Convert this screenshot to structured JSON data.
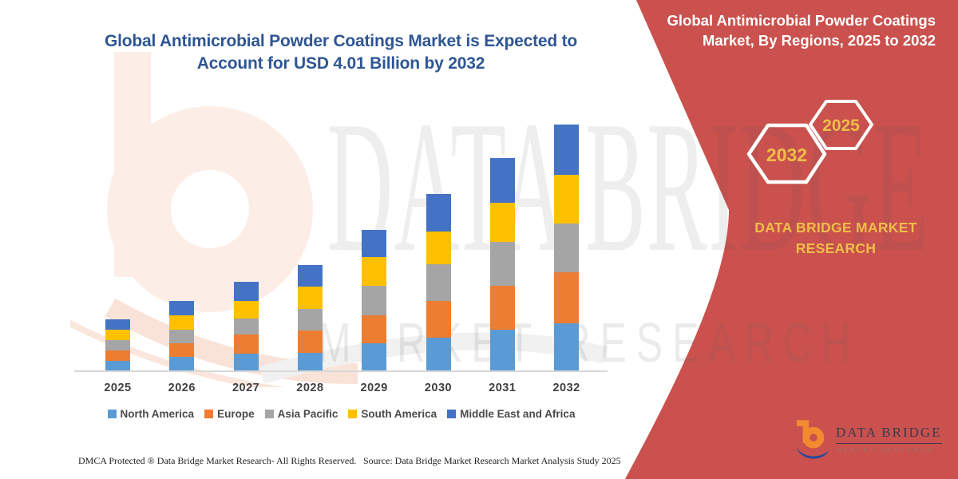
{
  "main_title": "Global Antimicrobial Powder Coatings Market is Expected to Account for USD 4.01 Billion by 2032",
  "watermark": {
    "brand_word": "DATA BRIDGE",
    "sub_word": "MARKET RESEARCH"
  },
  "chart_data": {
    "type": "bar",
    "stacked": true,
    "title": "Global Antimicrobial Powder Coatings Market is Expected to Account for USD 4.01 Billion by 2032",
    "unit": "USD Billion",
    "categories": [
      "2025",
      "2026",
      "2027",
      "2028",
      "2029",
      "2030",
      "2031",
      "2032"
    ],
    "series": [
      {
        "name": "North America",
        "color": "#5B9BD5",
        "values": [
          0.17,
          0.23,
          0.28,
          0.3,
          0.45,
          0.54,
          0.67,
          0.78
        ]
      },
      {
        "name": "Europe",
        "color": "#ED7D31",
        "values": [
          0.17,
          0.22,
          0.31,
          0.36,
          0.45,
          0.59,
          0.71,
          0.83
        ]
      },
      {
        "name": "Asia Pacific",
        "color": "#A5A5A5",
        "values": [
          0.17,
          0.22,
          0.26,
          0.35,
          0.48,
          0.59,
          0.71,
          0.79
        ]
      },
      {
        "name": "South America",
        "color": "#FFC000",
        "values": [
          0.17,
          0.23,
          0.28,
          0.36,
          0.46,
          0.53,
          0.64,
          0.79
        ]
      },
      {
        "name": "Middle East and Africa",
        "color": "#4472C4",
        "values": [
          0.17,
          0.23,
          0.31,
          0.35,
          0.44,
          0.61,
          0.72,
          0.82
        ]
      }
    ],
    "totals": [
      0.85,
      1.13,
      1.44,
      1.72,
      2.28,
      2.86,
      3.45,
      4.01
    ],
    "ylim": [
      0,
      4.2
    ],
    "grid": false,
    "legend_position": "bottom",
    "xlabel": "",
    "ylabel": ""
  },
  "side_panel": {
    "title": "Global Antimicrobial Powder Coatings Market, By Regions, 2025 to 2032",
    "hexagon_left": "2032",
    "hexagon_right": "2025",
    "brand": "DATA BRIDGE MARKET RESEARCH",
    "panel_color": "#CA514D",
    "accent_color": "#EFBE48"
  },
  "logo": {
    "name": "DATA BRIDGE",
    "subtitle": "MARKET RESEARCH"
  },
  "footer": {
    "left": "DMCA Protected ® Data Bridge Market Research-  All Rights Reserved.",
    "right": "Source: Data Bridge Market Research  Market Analysis Study 2025"
  }
}
